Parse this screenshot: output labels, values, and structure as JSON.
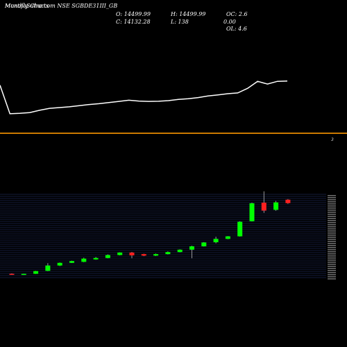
{
  "header": {
    "title": "MunafaSutra.com NSE SGBDE31III_GB",
    "overlay": "Monthly Charts"
  },
  "ohlc": {
    "open": "O: 14499.99",
    "high": "H: 14499.99",
    "close": "C: 14132.28",
    "low": "L: 138",
    "oc": "OC: 2.6",
    "oc_overlap": "0.00",
    "ol": "OL: 4.6"
  },
  "divider_label": "3",
  "colors": {
    "background": "#000000",
    "line": "#ffffff",
    "divider": "#cc7a00",
    "grid": "#2a3a7a",
    "up": "#00ff00",
    "down": "#ff2020"
  },
  "chart_data": [
    {
      "type": "line",
      "series": [
        {
          "values": [
            9.8,
            6.1,
            6.15,
            6.25,
            6.55,
            6.8,
            6.9,
            7.0,
            7.15,
            7.3,
            7.4,
            7.55,
            7.7,
            7.85,
            7.75,
            7.7,
            7.72,
            7.8,
            7.95,
            8.05,
            8.2,
            8.4,
            8.55,
            8.7,
            8.8,
            9.4,
            10.3,
            9.95,
            10.3,
            10.35
          ]
        }
      ]
    },
    {
      "type": "candlestick",
      "ylim": [
        0,
        130
      ],
      "candles": [
        {
          "o": 4.0,
          "h": 4.6,
          "l": 3.2,
          "c": 3.4,
          "dir": "down"
        },
        {
          "o": 3.3,
          "h": 4.1,
          "l": 2.2,
          "c": 3.9,
          "dir": "up"
        },
        {
          "o": 4.0,
          "h": 9.0,
          "l": 3.7,
          "c": 8.6,
          "dir": "up"
        },
        {
          "o": 9.0,
          "h": 21.8,
          "l": 8.6,
          "c": 17.8,
          "dir": "up"
        },
        {
          "o": 17.8,
          "h": 23.0,
          "l": 17.0,
          "c": 22.4,
          "dir": "up"
        },
        {
          "o": 22.4,
          "h": 26.0,
          "l": 22.0,
          "c": 25.3,
          "dir": "up"
        },
        {
          "o": 24.0,
          "h": 31.0,
          "l": 23.5,
          "c": 29.5,
          "dir": "up"
        },
        {
          "o": 28.0,
          "h": 32.0,
          "l": 27.5,
          "c": 30.5,
          "dir": "up"
        },
        {
          "o": 30.5,
          "h": 36.5,
          "l": 30.0,
          "c": 35.3,
          "dir": "up"
        },
        {
          "o": 35.3,
          "h": 40.0,
          "l": 34.8,
          "c": 39.6,
          "dir": "up"
        },
        {
          "o": 39.6,
          "h": 40.6,
          "l": 30.0,
          "c": 34.8,
          "dir": "down"
        },
        {
          "o": 37.0,
          "h": 37.6,
          "l": 33.6,
          "c": 34.4,
          "dir": "down"
        },
        {
          "o": 34.4,
          "h": 37.8,
          "l": 33.8,
          "c": 37.0,
          "dir": "up"
        },
        {
          "o": 37.0,
          "h": 41.5,
          "l": 36.6,
          "c": 40.4,
          "dir": "up"
        },
        {
          "o": 40.4,
          "h": 45.0,
          "l": 40.0,
          "c": 44.4,
          "dir": "up"
        },
        {
          "o": 44.4,
          "h": 51.0,
          "l": 30.0,
          "c": 50.0,
          "dir": "up"
        },
        {
          "o": 50.0,
          "h": 57.0,
          "l": 49.6,
          "c": 56.4,
          "dir": "up"
        },
        {
          "o": 56.8,
          "h": 66.0,
          "l": 55.0,
          "c": 62.4,
          "dir": "up"
        },
        {
          "o": 62.4,
          "h": 67.0,
          "l": 62.0,
          "c": 66.6,
          "dir": "up"
        },
        {
          "o": 66.6,
          "h": 92.0,
          "l": 66.2,
          "c": 91.0,
          "dir": "up"
        },
        {
          "o": 92.0,
          "h": 123.0,
          "l": 91.5,
          "c": 122.0,
          "dir": "up"
        },
        {
          "o": 123.0,
          "h": 142.0,
          "l": 106.0,
          "c": 109.8,
          "dir": "down"
        },
        {
          "o": 111.0,
          "h": 126.0,
          "l": 109.5,
          "c": 123.5,
          "dir": "up"
        },
        {
          "o": 128.0,
          "h": 129.0,
          "l": 121.0,
          "c": 122.2,
          "dir": "down"
        }
      ]
    }
  ]
}
